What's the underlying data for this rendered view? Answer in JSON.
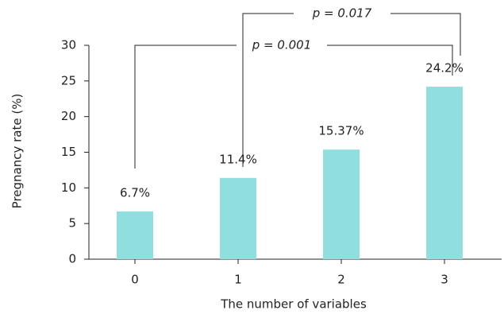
{
  "chart_data": {
    "type": "bar",
    "x_label": "The number of variables",
    "y_label": "Pregnancy rate (%)",
    "categories": [
      "0",
      "1",
      "2",
      "3"
    ],
    "values": [
      6.7,
      11.4,
      15.37,
      24.2
    ],
    "value_labels": [
      "6.7%",
      "11.4%",
      "15.37%",
      "24.2%"
    ],
    "color": "#90dede",
    "ylim": [
      0,
      30
    ],
    "yticks": [
      0,
      5,
      10,
      15,
      20,
      25,
      30
    ],
    "annotations": [
      "p = 0.017",
      "p = 0.001"
    ]
  }
}
